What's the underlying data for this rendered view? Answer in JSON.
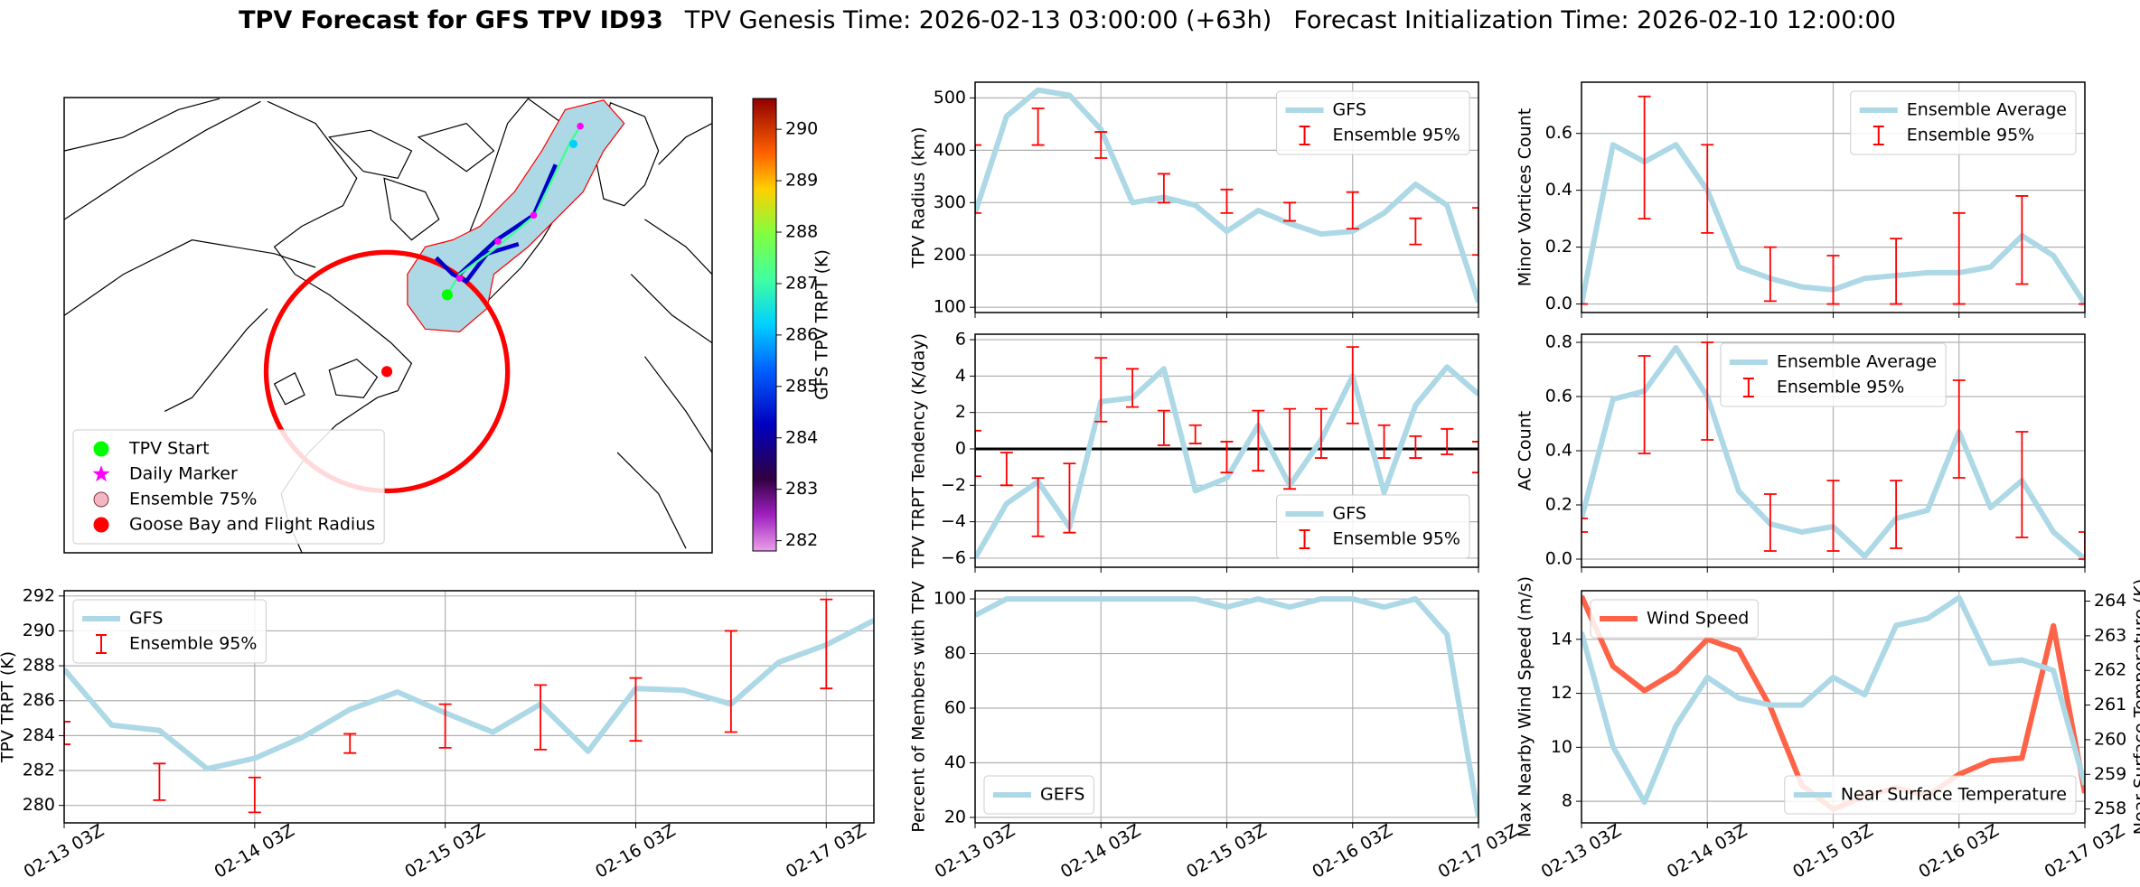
{
  "figure_title": {
    "main": "TPV Forecast for GFS TPV ID93",
    "genesis": "TPV Genesis Time: 2026-02-13 03:00:00 (+63h)",
    "init": "Forecast Initialization Time: 2026-02-10 12:00:00"
  },
  "chart_data": [
    {
      "type": "map",
      "legend": "lower left",
      "series": [
        {
          "name": "TPV Start",
          "color": "#00ff00",
          "marker": "circle"
        },
        {
          "name": "Daily Marker",
          "color": "#ff00ff",
          "marker": "star"
        },
        {
          "name": "Ensemble 75%",
          "color": "#f4b6c2",
          "edgecolor": "#7a3a3a",
          "marker": "circle"
        },
        {
          "name": "Goose Bay and Flight Radius",
          "color": "#ff0000",
          "marker": "circle"
        }
      ],
      "colorbar": {
        "label": "GFS TPV TRPT (K)",
        "lim": [
          281.8,
          290.6
        ],
        "ticks": [
          282,
          283,
          284,
          285,
          286,
          287,
          288,
          289,
          290
        ]
      }
    },
    {
      "type": "line",
      "ylabel": "TPV Radius (km)",
      "sharex": 6,
      "grid": true,
      "legend": "upper right",
      "ylim": [
        90,
        530
      ],
      "yticks": [
        100,
        200,
        300,
        400,
        500
      ],
      "x": [
        "02-13 03Z",
        "02-13 09Z",
        "02-13 15Z",
        "02-13 21Z",
        "02-14 03Z",
        "02-14 09Z",
        "02-14 15Z",
        "02-14 21Z",
        "02-15 03Z",
        "02-15 09Z",
        "02-15 15Z",
        "02-15 21Z",
        "02-16 03Z",
        "02-16 09Z",
        "02-16 15Z",
        "02-16 21Z",
        "02-17 03Z"
      ],
      "series": [
        {
          "name": "GFS",
          "color": "#add8e6",
          "values": [
            280,
            465,
            515,
            505,
            440,
            300,
            310,
            295,
            245,
            285,
            260,
            240,
            245,
            280,
            335,
            295,
            110
          ]
        },
        {
          "name": "Ensemble 95%",
          "kind": "errorbar",
          "color": "#ff0000",
          "x": [
            "02-13 03Z",
            "02-13 15Z",
            "02-14 03Z",
            "02-14 15Z",
            "02-15 03Z",
            "02-15 15Z",
            "02-16 03Z",
            "02-16 15Z",
            "02-17 03Z"
          ],
          "low": [
            280,
            410,
            385,
            300,
            280,
            265,
            250,
            220,
            200
          ],
          "high": [
            410,
            480,
            435,
            355,
            325,
            300,
            320,
            270,
            290
          ]
        }
      ]
    },
    {
      "type": "line",
      "ylabel": "Minor Vortices Count",
      "sharex": 7,
      "grid": true,
      "legend": "upper right",
      "ylim": [
        -0.03,
        0.78
      ],
      "yticks": [
        {
          "value": 0,
          "label": "0.0"
        },
        0.2,
        0.4,
        0.6
      ],
      "x": [
        "02-13 03Z",
        "02-13 09Z",
        "02-13 15Z",
        "02-13 21Z",
        "02-14 03Z",
        "02-14 09Z",
        "02-14 15Z",
        "02-14 21Z",
        "02-15 03Z",
        "02-15 09Z",
        "02-15 15Z",
        "02-15 21Z",
        "02-16 03Z",
        "02-16 09Z",
        "02-16 15Z",
        "02-16 21Z",
        "02-17 03Z"
      ],
      "series": [
        {
          "name": "Ensemble Average",
          "color": "#add8e6",
          "values": [
            0,
            0.56,
            0.5,
            0.56,
            0.4,
            0.13,
            0.09,
            0.06,
            0.05,
            0.09,
            0.1,
            0.11,
            0.11,
            0.13,
            0.24,
            0.17,
            0
          ]
        },
        {
          "name": "Ensemble 95%",
          "kind": "errorbar",
          "color": "#ff0000",
          "x": [
            "02-13 03Z",
            "02-13 15Z",
            "02-14 03Z",
            "02-14 15Z",
            "02-15 03Z",
            "02-15 15Z",
            "02-16 03Z",
            "02-16 15Z",
            "02-17 03Z"
          ],
          "low": [
            0,
            0.3,
            0.25,
            0.01,
            0,
            0,
            0,
            0.07,
            0
          ],
          "high": [
            0,
            0.73,
            0.56,
            0.2,
            0.17,
            0.23,
            0.32,
            0.38,
            0
          ]
        }
      ]
    },
    {
      "type": "line",
      "ylabel": "TPV TRPT Tendency (K/day)",
      "sharex": 6,
      "grid": true,
      "legend": "lower right",
      "hline": 0,
      "ylim": [
        -6.5,
        6.3
      ],
      "yticks": [
        {
          "value": -6,
          "label": "−6"
        },
        {
          "value": -4,
          "label": "−4"
        },
        {
          "value": -2,
          "label": "−2"
        },
        0,
        2,
        4,
        6
      ],
      "x": [
        "02-13 03Z",
        "02-13 09Z",
        "02-13 15Z",
        "02-13 21Z",
        "02-14 03Z",
        "02-14 09Z",
        "02-14 15Z",
        "02-14 21Z",
        "02-15 03Z",
        "02-15 09Z",
        "02-15 15Z",
        "02-15 21Z",
        "02-16 03Z",
        "02-16 09Z",
        "02-16 15Z",
        "02-16 21Z",
        "02-17 03Z"
      ],
      "series": [
        {
          "name": "GFS",
          "color": "#add8e6",
          "values": [
            -6,
            -3,
            -1.8,
            -4.3,
            2.6,
            2.8,
            4.4,
            -2.3,
            -1.6,
            1.3,
            -2,
            0.5,
            4,
            -2.4,
            2.4,
            4.5,
            3
          ]
        },
        {
          "name": "Ensemble 95%",
          "kind": "errorbar",
          "color": "#ff0000",
          "x": [
            "02-13 03Z",
            "02-13 09Z",
            "02-13 15Z",
            "02-13 21Z",
            "02-14 03Z",
            "02-14 09Z",
            "02-14 15Z",
            "02-14 21Z",
            "02-15 03Z",
            "02-15 09Z",
            "02-15 15Z",
            "02-15 21Z",
            "02-16 03Z",
            "02-16 09Z",
            "02-16 15Z",
            "02-16 21Z",
            "02-17 03Z"
          ],
          "low": [
            -1.5,
            -2,
            -4.8,
            -4.6,
            1.5,
            2.3,
            0.2,
            0.3,
            -1.3,
            -1.2,
            -2.2,
            -0.5,
            1.4,
            -0.5,
            -0.5,
            -0.3,
            -1.3
          ],
          "high": [
            1,
            -0.2,
            -1.6,
            -0.8,
            5,
            4.4,
            2.1,
            1.3,
            0.4,
            2.1,
            2.2,
            2.2,
            5.6,
            1.3,
            0.7,
            1.1,
            0.4
          ]
        }
      ]
    },
    {
      "type": "line",
      "ylabel": "AC Count",
      "sharex": 7,
      "grid": true,
      "legend": "upper center",
      "ylim": [
        -0.03,
        0.83
      ],
      "yticks": [
        {
          "value": 0,
          "label": "0.0"
        },
        0.2,
        0.4,
        0.6,
        0.8
      ],
      "x": [
        "02-13 03Z",
        "02-13 09Z",
        "02-13 15Z",
        "02-13 21Z",
        "02-14 03Z",
        "02-14 09Z",
        "02-14 15Z",
        "02-14 21Z",
        "02-15 03Z",
        "02-15 09Z",
        "02-15 15Z",
        "02-15 21Z",
        "02-16 03Z",
        "02-16 09Z",
        "02-16 15Z",
        "02-16 21Z",
        "02-17 03Z"
      ],
      "series": [
        {
          "name": "Ensemble Average",
          "color": "#add8e6",
          "values": [
            0.15,
            0.59,
            0.62,
            0.78,
            0.6,
            0.25,
            0.13,
            0.1,
            0.12,
            0.01,
            0.15,
            0.18,
            0.47,
            0.19,
            0.29,
            0.1,
            0
          ]
        },
        {
          "name": "Ensemble 95%",
          "kind": "errorbar",
          "color": "#ff0000",
          "x": [
            "02-13 03Z",
            "02-13 15Z",
            "02-14 03Z",
            "02-14 15Z",
            "02-15 03Z",
            "02-15 15Z",
            "02-16 03Z",
            "02-16 15Z",
            "02-17 03Z"
          ],
          "low": [
            0.1,
            0.39,
            0.44,
            0.03,
            0.03,
            0.04,
            0.3,
            0.08,
            0
          ],
          "high": [
            0.15,
            0.75,
            0.8,
            0.24,
            0.29,
            0.29,
            0.66,
            0.47,
            0.1
          ]
        }
      ]
    },
    {
      "type": "line",
      "ylabel": "TPV TRPT (K)",
      "grid": true,
      "legend": "upper left",
      "xlim": [
        "02-13 03Z",
        "02-17 09Z"
      ],
      "xticks": [
        "02-13 03Z",
        "02-14 03Z",
        "02-15 03Z",
        "02-16 03Z",
        "02-17 03Z"
      ],
      "ylim": [
        279,
        292.3
      ],
      "yticks": [
        280,
        282,
        284,
        286,
        288,
        290,
        292
      ],
      "x": [
        "02-13 03Z",
        "02-13 09Z",
        "02-13 15Z",
        "02-13 21Z",
        "02-14 03Z",
        "02-14 09Z",
        "02-14 15Z",
        "02-14 21Z",
        "02-15 03Z",
        "02-15 09Z",
        "02-15 15Z",
        "02-15 21Z",
        "02-16 03Z",
        "02-16 09Z",
        "02-16 15Z",
        "02-16 21Z",
        "02-17 03Z",
        "02-17 09Z"
      ],
      "series": [
        {
          "name": "GFS",
          "color": "#add8e6",
          "values": [
            287.8,
            284.6,
            284.3,
            282.1,
            282.7,
            283.9,
            285.5,
            286.5,
            285.3,
            284.2,
            285.8,
            283.1,
            286.7,
            286.6,
            285.8,
            288.2,
            289.2,
            290.6
          ]
        },
        {
          "name": "Ensemble 95%",
          "kind": "errorbar",
          "color": "#ff0000",
          "x": [
            "02-13 03Z",
            "02-13 15Z",
            "02-14 03Z",
            "02-14 15Z",
            "02-15 03Z",
            "02-15 15Z",
            "02-16 03Z",
            "02-16 15Z",
            "02-17 03Z"
          ],
          "low": [
            283.5,
            280.3,
            279.6,
            283,
            283.3,
            283.2,
            283.7,
            284.2,
            286.7
          ],
          "high": [
            284.8,
            282.4,
            281.6,
            284.1,
            285.8,
            286.9,
            287.3,
            290,
            291.8
          ]
        }
      ]
    },
    {
      "type": "line",
      "ylabel": "Percent of Members with TPV",
      "grid": true,
      "legend": "lower left",
      "xlim": [
        "02-13 03Z",
        "02-17 03Z"
      ],
      "xticks": [
        "02-13 03Z",
        "02-14 03Z",
        "02-15 03Z",
        "02-16 03Z",
        "02-17 03Z"
      ],
      "ylim": [
        18,
        103
      ],
      "yticks": [
        20,
        40,
        60,
        80,
        100
      ],
      "x": [
        "02-13 03Z",
        "02-13 09Z",
        "02-13 15Z",
        "02-13 21Z",
        "02-14 03Z",
        "02-14 09Z",
        "02-14 15Z",
        "02-14 21Z",
        "02-15 03Z",
        "02-15 09Z",
        "02-15 15Z",
        "02-15 21Z",
        "02-16 03Z",
        "02-16 09Z",
        "02-16 15Z",
        "02-16 21Z",
        "02-17 03Z"
      ],
      "series": [
        {
          "name": "GEFS",
          "color": "#add8e6",
          "values": [
            94,
            100,
            100,
            100,
            100,
            100,
            100,
            100,
            97,
            100,
            97,
            100,
            100,
            97,
            100,
            87,
            20
          ]
        }
      ]
    },
    {
      "type": "line",
      "ylabel": "Max Nearby Wind Speed (m/s)",
      "ylabel_color": "#ff6347",
      "y2label": "Near Surface Temperature (K)",
      "y2_color": "#4169e1",
      "grid": true,
      "xlim": [
        "02-13 03Z",
        "02-17 03Z"
      ],
      "xticks": [
        "02-13 03Z",
        "02-14 03Z",
        "02-15 03Z",
        "02-16 03Z",
        "02-17 03Z"
      ],
      "ylim": [
        7.2,
        15.8
      ],
      "yticks": [
        8,
        10,
        12,
        14
      ],
      "y2lim": [
        257.6,
        264.3
      ],
      "y2ticks": [
        258,
        259,
        260,
        261,
        262,
        263,
        264
      ],
      "x": [
        "02-13 03Z",
        "02-13 09Z",
        "02-13 15Z",
        "02-13 21Z",
        "02-14 03Z",
        "02-14 09Z",
        "02-14 15Z",
        "02-14 21Z",
        "02-15 03Z",
        "02-15 09Z",
        "02-15 15Z",
        "02-15 21Z",
        "02-16 03Z",
        "02-16 09Z",
        "02-16 15Z",
        "02-16 21Z",
        "02-17 03Z"
      ],
      "series": [
        {
          "name": "Wind Speed",
          "color": "#ff6347",
          "legend": "upper left",
          "values": [
            15.6,
            13,
            12.1,
            12.8,
            14,
            13.6,
            11.5,
            8.6,
            7.7,
            8.2,
            8.5,
            8.2,
            9,
            9.5,
            9.6,
            14.5,
            8.3
          ]
        },
        {
          "name": "Near Surface Temperature",
          "color": "#add8e6",
          "axis": "y2",
          "legend": "lower right",
          "values": [
            263.1,
            259.8,
            258.2,
            260.4,
            261.8,
            261.2,
            261,
            261,
            261.8,
            261.3,
            263.3,
            263.5,
            264.1,
            262.2,
            262.3,
            262,
            258.7
          ]
        }
      ]
    }
  ]
}
